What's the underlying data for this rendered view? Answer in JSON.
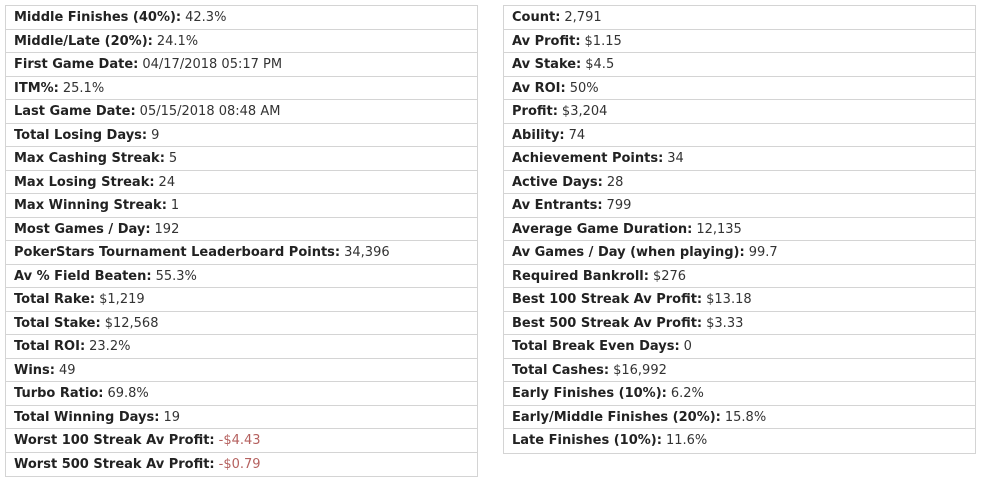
{
  "tables": {
    "left": {
      "rows": [
        {
          "label": "Middle Finishes (40%):",
          "value": "42.3%"
        },
        {
          "label": "Middle/Late (20%):",
          "value": "24.1%"
        },
        {
          "label": "First Game Date:",
          "value": "04/17/2018 05:17 PM"
        },
        {
          "label": "ITM%:",
          "value": "25.1%"
        },
        {
          "label": "Last Game Date:",
          "value": "05/15/2018 08:48 AM"
        },
        {
          "label": "Total Losing Days:",
          "value": "9"
        },
        {
          "label": "Max Cashing Streak:",
          "value": "5"
        },
        {
          "label": "Max Losing Streak:",
          "value": "24"
        },
        {
          "label": "Max Winning Streak:",
          "value": "1"
        },
        {
          "label": "Most Games / Day:",
          "value": "192"
        },
        {
          "label": "PokerStars Tournament Leaderboard Points:",
          "value": "34,396"
        },
        {
          "label": "Av % Field Beaten:",
          "value": "55.3%"
        },
        {
          "label": "Total Rake:",
          "value": "$1,219"
        },
        {
          "label": "Total Stake:",
          "value": "$12,568"
        },
        {
          "label": "Total ROI:",
          "value": "23.2%"
        },
        {
          "label": "Wins:",
          "value": "49"
        },
        {
          "label": "Turbo Ratio:",
          "value": "69.8%"
        },
        {
          "label": "Total Winning Days:",
          "value": "19"
        },
        {
          "label": "Worst 100 Streak Av Profit:",
          "value": "-$4.43",
          "value_color": "#b5615f"
        },
        {
          "label": "Worst 500 Streak Av Profit:",
          "value": "-$0.79",
          "value_color": "#b5615f"
        }
      ]
    },
    "right": {
      "rows": [
        {
          "label": "Count:",
          "value": "2,791"
        },
        {
          "label": "Av Profit:",
          "value": "$1.15"
        },
        {
          "label": "Av Stake:",
          "value": "$4.5"
        },
        {
          "label": "Av ROI:",
          "value": "50%"
        },
        {
          "label": "Profit:",
          "value": "$3,204"
        },
        {
          "label": "Ability:",
          "value": "74"
        },
        {
          "label": "Achievement Points:",
          "value": "34"
        },
        {
          "label": "Active Days:",
          "value": "28"
        },
        {
          "label": "Av Entrants:",
          "value": "799"
        },
        {
          "label": "Average Game Duration:",
          "value": "12,135"
        },
        {
          "label": "Av Games / Day (when playing):",
          "value": "99.7"
        },
        {
          "label": "Required Bankroll:",
          "value": "$276"
        },
        {
          "label": "Best 100 Streak Av Profit:",
          "value": "$13.18"
        },
        {
          "label": "Best 500 Streak Av Profit:",
          "value": "$3.33"
        },
        {
          "label": "Total Break Even Days:",
          "value": "0"
        },
        {
          "label": "Total Cashes:",
          "value": "$16,992"
        },
        {
          "label": "Early Finishes (10%):",
          "value": "6.2%"
        },
        {
          "label": "Early/Middle Finishes (20%):",
          "value": "15.8%"
        },
        {
          "label": "Late Finishes (10%):",
          "value": "11.6%"
        }
      ]
    }
  }
}
